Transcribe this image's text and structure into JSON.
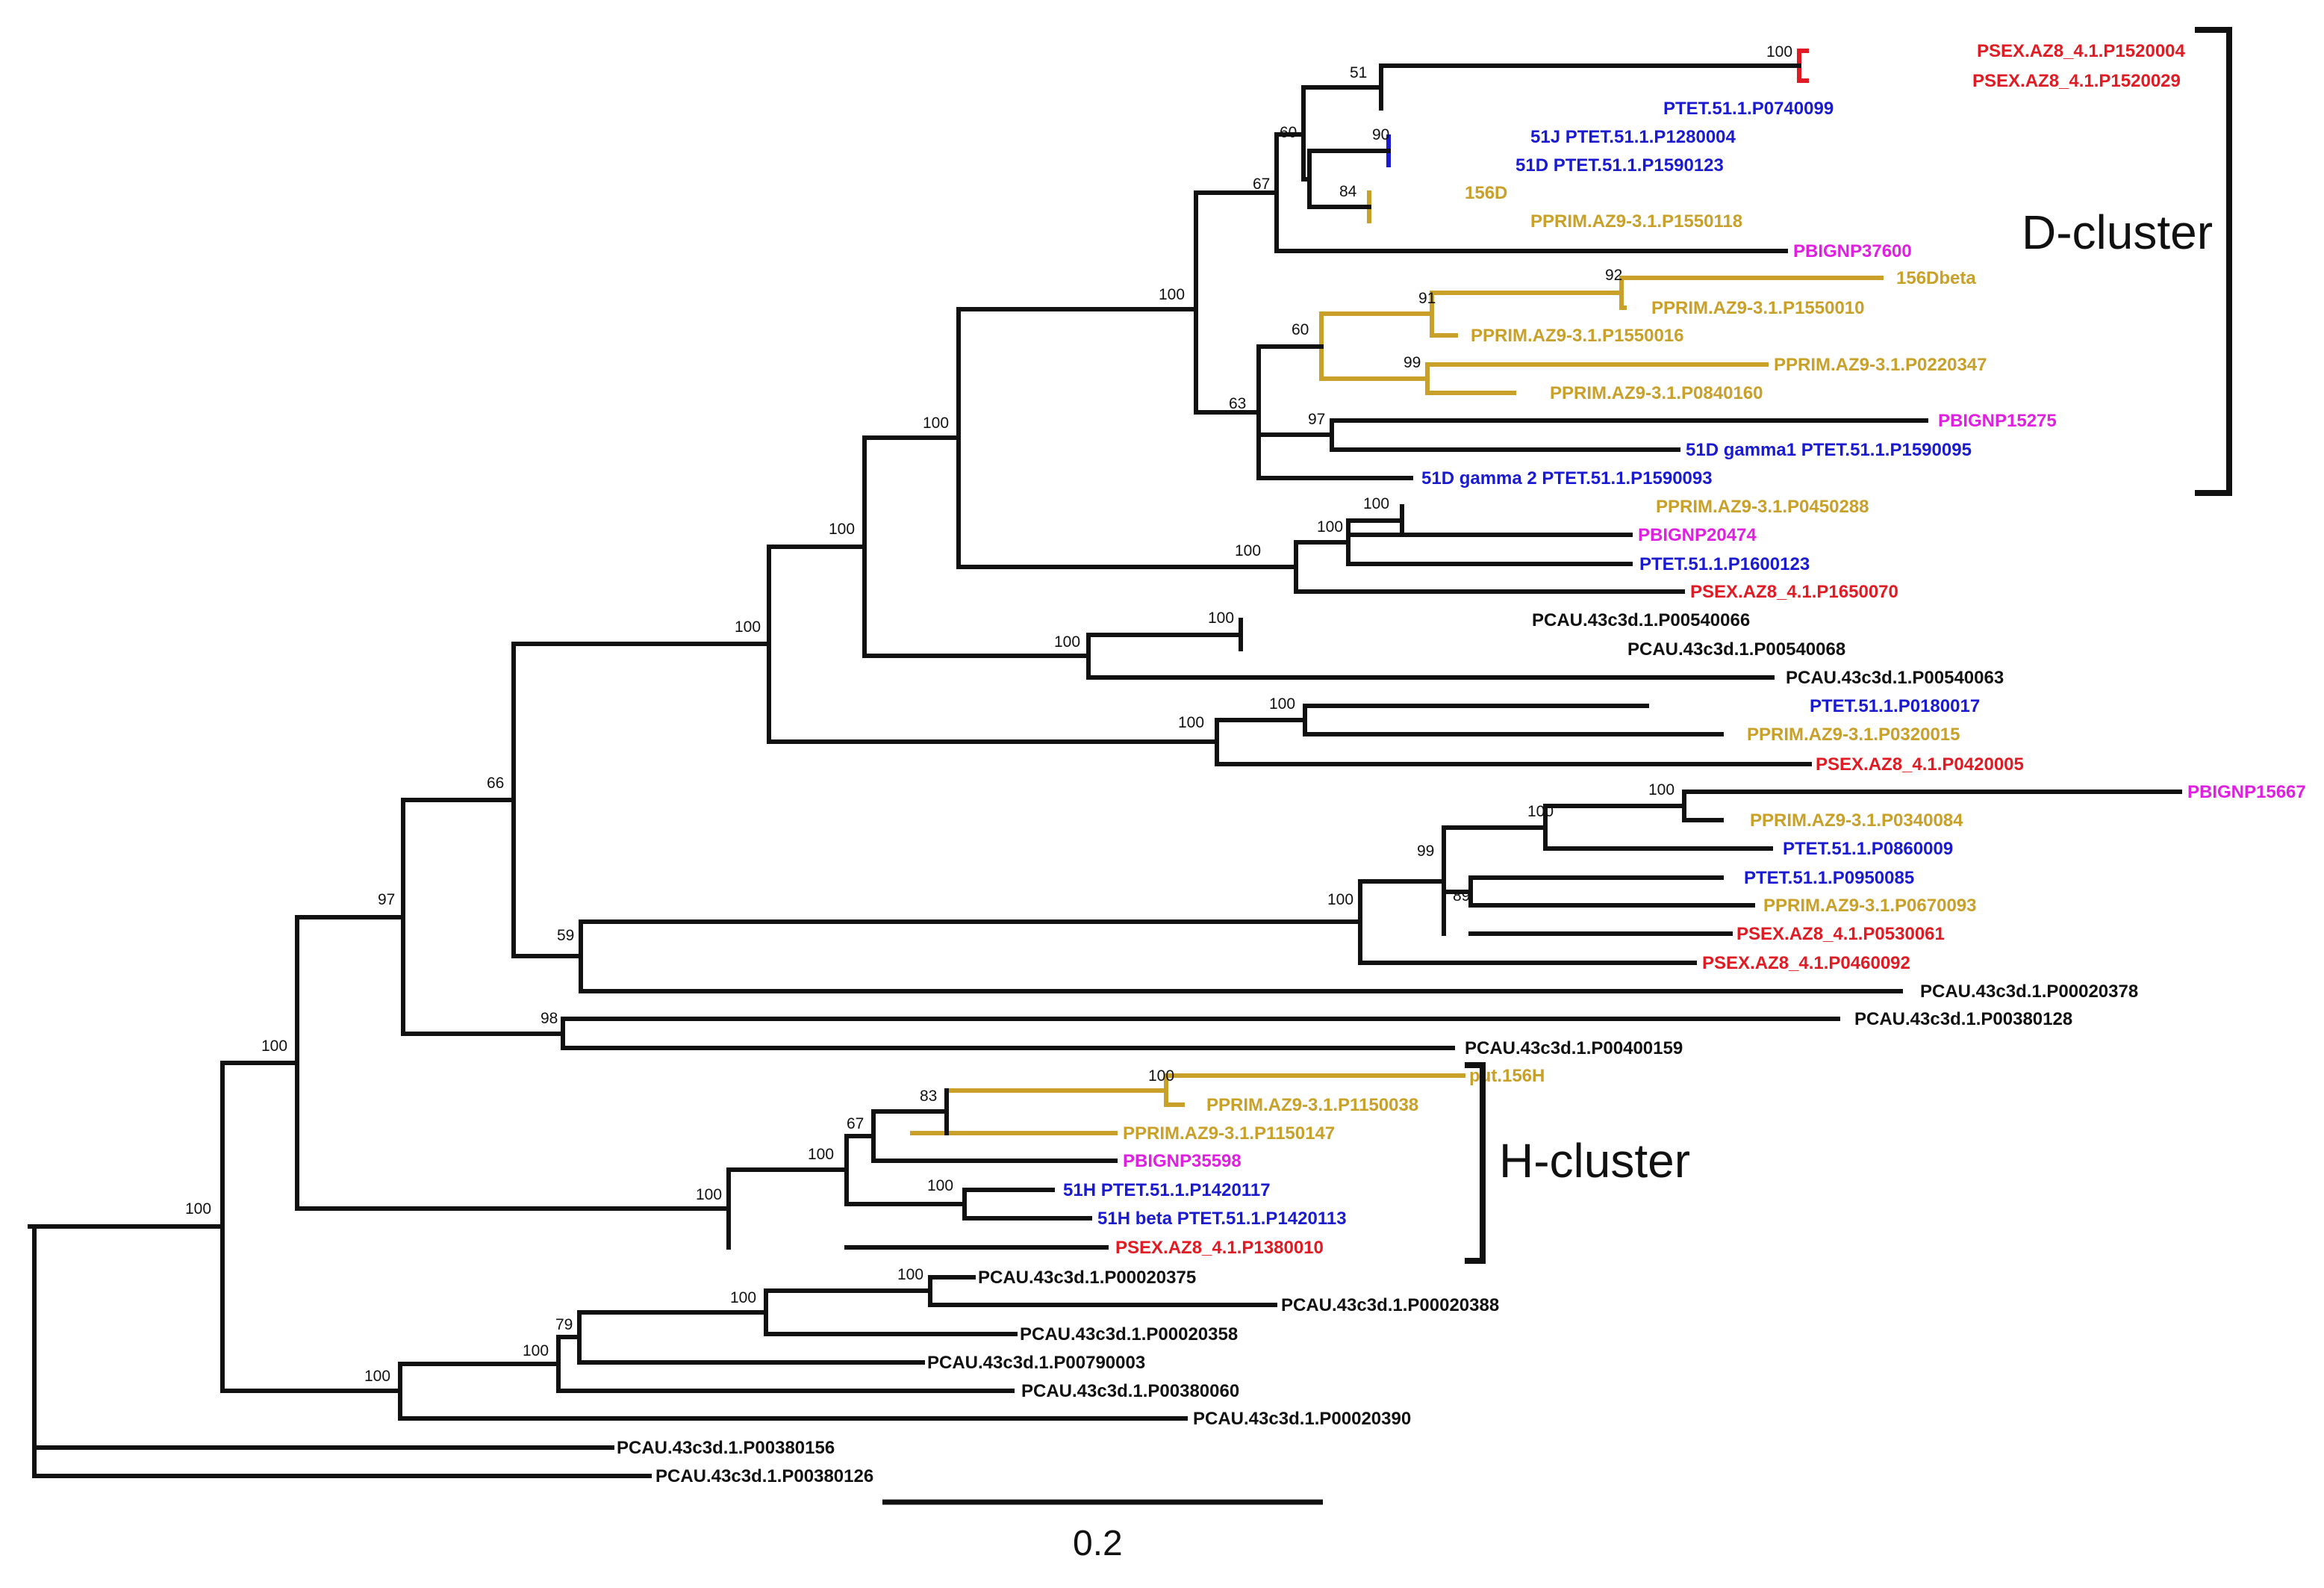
{
  "colors": {
    "black": "#111111",
    "red": "#e01b24",
    "blue": "#1a1ad0",
    "gold": "#c8a02a",
    "magenta": "#e020e0"
  },
  "clusters": {
    "d_cluster": "D-cluster",
    "h_cluster": "H-cluster"
  },
  "scale_bar": {
    "label": "0.2"
  },
  "taxa": [
    {
      "name": "PSEX.AZ8_4.1.P1520004",
      "color": "red"
    },
    {
      "name": "PSEX.AZ8_4.1.P1520029",
      "color": "red"
    },
    {
      "name": "PTET.51.1.P0740099",
      "color": "blue"
    },
    {
      "name": "51J PTET.51.1.P1280004",
      "color": "blue"
    },
    {
      "name": "51D PTET.51.1.P1590123",
      "color": "blue"
    },
    {
      "name": "156D",
      "color": "gold"
    },
    {
      "name": "PPRIM.AZ9-3.1.P1550118",
      "color": "gold"
    },
    {
      "name": "PBIGNP37600",
      "color": "magenta"
    },
    {
      "name": "156Dbeta",
      "color": "gold"
    },
    {
      "name": "PPRIM.AZ9-3.1.P1550010",
      "color": "gold"
    },
    {
      "name": "PPRIM.AZ9-3.1.P1550016",
      "color": "gold"
    },
    {
      "name": "PPRIM.AZ9-3.1.P0220347",
      "color": "gold"
    },
    {
      "name": "PPRIM.AZ9-3.1.P0840160",
      "color": "gold"
    },
    {
      "name": "PBIGNP15275",
      "color": "magenta"
    },
    {
      "name": "51D gamma1 PTET.51.1.P1590095",
      "color": "blue"
    },
    {
      "name": "51D gamma 2 PTET.51.1.P1590093",
      "color": "blue"
    },
    {
      "name": "PPRIM.AZ9-3.1.P0450288",
      "color": "gold"
    },
    {
      "name": "PBIGNP20474",
      "color": "magenta"
    },
    {
      "name": "PTET.51.1.P1600123",
      "color": "blue"
    },
    {
      "name": "PSEX.AZ8_4.1.P1650070",
      "color": "red"
    },
    {
      "name": "PCAU.43c3d.1.P00540066",
      "color": "black"
    },
    {
      "name": "PCAU.43c3d.1.P00540068",
      "color": "black"
    },
    {
      "name": "PCAU.43c3d.1.P00540063",
      "color": "black"
    },
    {
      "name": "PTET.51.1.P0180017",
      "color": "blue"
    },
    {
      "name": "PPRIM.AZ9-3.1.P0320015",
      "color": "gold"
    },
    {
      "name": "PSEX.AZ8_4.1.P0420005",
      "color": "red"
    },
    {
      "name": "PBIGNP15667",
      "color": "magenta"
    },
    {
      "name": "PPRIM.AZ9-3.1.P0340084",
      "color": "gold"
    },
    {
      "name": "PTET.51.1.P0860009",
      "color": "blue"
    },
    {
      "name": "PTET.51.1.P0950085",
      "color": "blue"
    },
    {
      "name": "PPRIM.AZ9-3.1.P0670093",
      "color": "gold"
    },
    {
      "name": "PSEX.AZ8_4.1.P0530061",
      "color": "red"
    },
    {
      "name": "PSEX.AZ8_4.1.P0460092",
      "color": "red"
    },
    {
      "name": "PCAU.43c3d.1.P00020378",
      "color": "black"
    },
    {
      "name": "PCAU.43c3d.1.P00380128",
      "color": "black"
    },
    {
      "name": "PCAU.43c3d.1.P00400159",
      "color": "black"
    },
    {
      "name": "put.156H",
      "color": "gold"
    },
    {
      "name": "PPRIM.AZ9-3.1.P1150038",
      "color": "gold"
    },
    {
      "name": "PPRIM.AZ9-3.1.P1150147",
      "color": "gold"
    },
    {
      "name": "PBIGNP35598",
      "color": "magenta"
    },
    {
      "name": "51H PTET.51.1.P1420117",
      "color": "blue"
    },
    {
      "name": "51H beta PTET.51.1.P1420113",
      "color": "blue"
    },
    {
      "name": "PSEX.AZ8_4.1.P1380010",
      "color": "red"
    },
    {
      "name": "PCAU.43c3d.1.P00020375",
      "color": "black"
    },
    {
      "name": "PCAU.43c3d.1.P00020388",
      "color": "black"
    },
    {
      "name": "PCAU.43c3d.1.P00020358",
      "color": "black"
    },
    {
      "name": "PCAU.43c3d.1.P00790003",
      "color": "black"
    },
    {
      "name": "PCAU.43c3d.1.P00380060",
      "color": "black"
    },
    {
      "name": "PCAU.43c3d.1.P00020390",
      "color": "black"
    },
    {
      "name": "PCAU.43c3d.1.P00380156",
      "color": "black"
    },
    {
      "name": "PCAU.43c3d.1.P00380126",
      "color": "black"
    }
  ],
  "support_values": [
    {
      "id": "sv-sex",
      "value": "100"
    },
    {
      "id": "sv-a1",
      "value": "51"
    },
    {
      "id": "sv-51j",
      "value": "90"
    },
    {
      "id": "sv-156d",
      "value": "84"
    },
    {
      "id": "sv-a3",
      "value": "60"
    },
    {
      "id": "sv-a4",
      "value": "67"
    },
    {
      "id": "sv-b2",
      "value": "92"
    },
    {
      "id": "sv-b1",
      "value": "91"
    },
    {
      "id": "sv-b3",
      "value": "99"
    },
    {
      "id": "sv-b4",
      "value": "60"
    },
    {
      "id": "sv-b5",
      "value": "97"
    },
    {
      "id": "sv-b6",
      "value": "63"
    },
    {
      "id": "sv-dcl",
      "value": "100"
    },
    {
      "id": "sv-c1",
      "value": "100"
    },
    {
      "id": "sv-c2",
      "value": "100"
    },
    {
      "id": "sv-c3",
      "value": "100"
    },
    {
      "id": "sv-e",
      "value": "100"
    },
    {
      "id": "sv-f",
      "value": "100"
    },
    {
      "id": "sv-g",
      "value": "100"
    },
    {
      "id": "sv-h",
      "value": "100"
    },
    {
      "id": "sv-i",
      "value": "100"
    },
    {
      "id": "sv-j",
      "value": "100"
    },
    {
      "id": "sv-l1",
      "value": "100"
    },
    {
      "id": "sv-l2",
      "value": "100"
    },
    {
      "id": "sv-m",
      "value": "100"
    },
    {
      "id": "sv-n",
      "value": "89"
    },
    {
      "id": "sv-o",
      "value": "99"
    },
    {
      "id": "sv-p",
      "value": "100"
    },
    {
      "id": "sv-q",
      "value": "59"
    },
    {
      "id": "sv-r",
      "value": "66"
    },
    {
      "id": "sv-s",
      "value": "98"
    },
    {
      "id": "sv-t",
      "value": "97"
    },
    {
      "id": "sv-u1",
      "value": "100"
    },
    {
      "id": "sv-u2",
      "value": "83"
    },
    {
      "id": "sv-u3",
      "value": "67"
    },
    {
      "id": "sv-u4",
      "value": "100"
    },
    {
      "id": "sv-u5",
      "value": "100"
    },
    {
      "id": "sv-u6",
      "value": "100"
    },
    {
      "id": "sv-v",
      "value": "100"
    },
    {
      "id": "sv-w1",
      "value": "100"
    },
    {
      "id": "sv-w2",
      "value": "100"
    },
    {
      "id": "sv-w3",
      "value": "79"
    },
    {
      "id": "sv-w4",
      "value": "100"
    },
    {
      "id": "sv-w5",
      "value": "100"
    },
    {
      "id": "sv-root",
      "value": "100"
    }
  ]
}
